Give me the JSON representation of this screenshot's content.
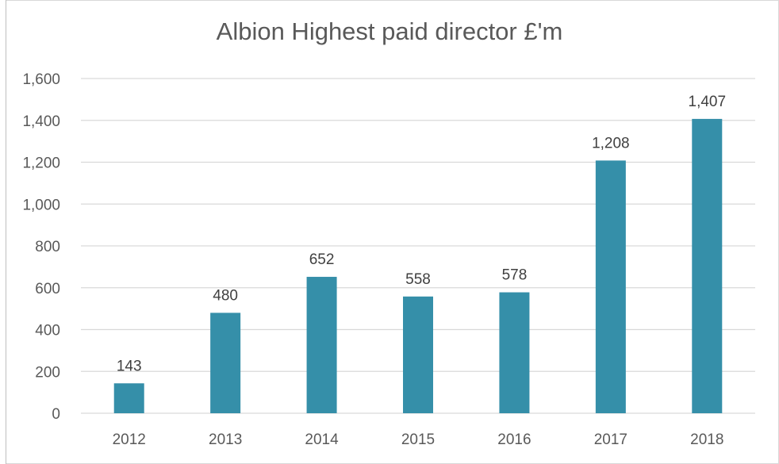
{
  "chart_data": {
    "type": "bar",
    "title": "Albion Highest paid director £'m",
    "xlabel": "",
    "ylabel": "",
    "categories": [
      "2012",
      "2013",
      "2014",
      "2015",
      "2016",
      "2017",
      "2018"
    ],
    "values": [
      143,
      480,
      652,
      558,
      578,
      1208,
      1407
    ],
    "value_labels": [
      "143",
      "480",
      "652",
      "558",
      "578",
      "1,208",
      "1,407"
    ],
    "ylim": [
      0,
      1600
    ],
    "yticks": [
      0,
      200,
      400,
      600,
      800,
      1000,
      1200,
      1400,
      1600
    ],
    "ytick_labels": [
      "0",
      "200",
      "400",
      "600",
      "800",
      "1,000",
      "1,200",
      "1,400",
      "1,600"
    ],
    "grid": true,
    "legend": "none",
    "bar_color": "#358fa9",
    "grid_color": "#d9d9d9"
  }
}
